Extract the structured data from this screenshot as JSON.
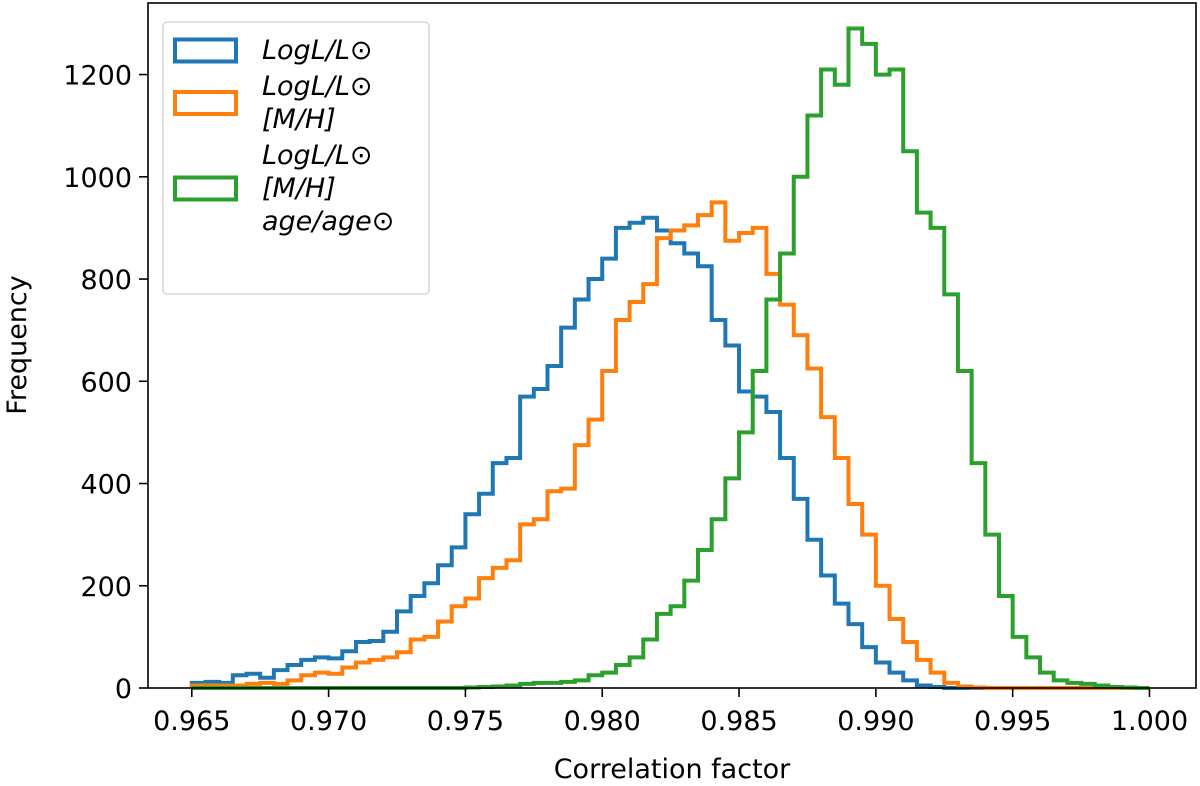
{
  "chart_data": {
    "type": "histogram",
    "title": "",
    "xlabel": "Correlation factor",
    "ylabel": "Frequency",
    "xlim": [
      0.9634,
      1.0017
    ],
    "ylim": [
      0,
      1340
    ],
    "x_ticks": [
      0.965,
      0.97,
      0.975,
      0.98,
      0.985,
      0.99,
      0.995,
      1.0
    ],
    "x_tick_labels": [
      "0.965",
      "0.970",
      "0.975",
      "0.980",
      "0.985",
      "0.990",
      "0.995",
      "1.000"
    ],
    "y_ticks": [
      0,
      200,
      400,
      600,
      800,
      1000,
      1200
    ],
    "y_tick_labels": [
      "0",
      "200",
      "400",
      "600",
      "800",
      "1000",
      "1200"
    ],
    "grid": false,
    "legend_position": "top-left",
    "series": [
      {
        "name": "LogL/L⊙",
        "legend_lines": [
          "LogL/L⊙"
        ],
        "color": "#1f77b4",
        "bin_start": 0.965,
        "bin_width": 0.0005,
        "counts": [
          10,
          12,
          10,
          25,
          28,
          20,
          35,
          45,
          55,
          60,
          58,
          72,
          90,
          92,
          110,
          150,
          180,
          205,
          240,
          275,
          340,
          380,
          440,
          450,
          570,
          585,
          630,
          705,
          760,
          800,
          840,
          900,
          910,
          920,
          895,
          870,
          850,
          825,
          720,
          670,
          580,
          570,
          540,
          450,
          370,
          290,
          220,
          165,
          125,
          80,
          50,
          30,
          15,
          5,
          2,
          0,
          0,
          0,
          0,
          0,
          0,
          0,
          0,
          0,
          0,
          0,
          0,
          0,
          0,
          0
        ]
      },
      {
        "name": "LogL/L⊙ [M/H]",
        "legend_lines": [
          "LogL/L⊙",
          "[M/H]"
        ],
        "color": "#ff7f0e",
        "bin_start": 0.965,
        "bin_width": 0.0005,
        "counts": [
          5,
          5,
          5,
          5,
          8,
          10,
          8,
          15,
          25,
          30,
          28,
          40,
          50,
          55,
          60,
          70,
          95,
          100,
          130,
          160,
          175,
          215,
          235,
          250,
          320,
          330,
          385,
          390,
          475,
          525,
          620,
          720,
          755,
          790,
          880,
          895,
          905,
          925,
          950,
          875,
          890,
          900,
          810,
          750,
          690,
          625,
          530,
          450,
          360,
          300,
          200,
          135,
          90,
          55,
          30,
          10,
          3,
          1,
          0,
          0,
          0,
          0,
          0,
          0,
          0,
          0,
          0,
          0,
          0,
          0
        ]
      },
      {
        "name": "LogL/L⊙ [M/H] age/age⊙",
        "legend_lines": [
          "LogL/L⊙",
          "[M/H]",
          "age/age⊙"
        ],
        "color": "#2ca02c",
        "bin_start": 0.965,
        "bin_width": 0.0005,
        "counts": [
          0,
          0,
          0,
          0,
          0,
          0,
          0,
          0,
          0,
          0,
          0,
          0,
          0,
          0,
          0,
          0,
          0,
          0,
          0,
          0,
          1,
          2,
          3,
          5,
          8,
          10,
          10,
          12,
          15,
          25,
          30,
          45,
          60,
          95,
          145,
          160,
          210,
          270,
          330,
          410,
          500,
          620,
          760,
          850,
          1000,
          1120,
          1210,
          1180,
          1290,
          1260,
          1200,
          1210,
          1050,
          930,
          900,
          770,
          620,
          440,
          300,
          180,
          100,
          60,
          30,
          15,
          10,
          8,
          5,
          2,
          1,
          0
        ]
      }
    ]
  }
}
